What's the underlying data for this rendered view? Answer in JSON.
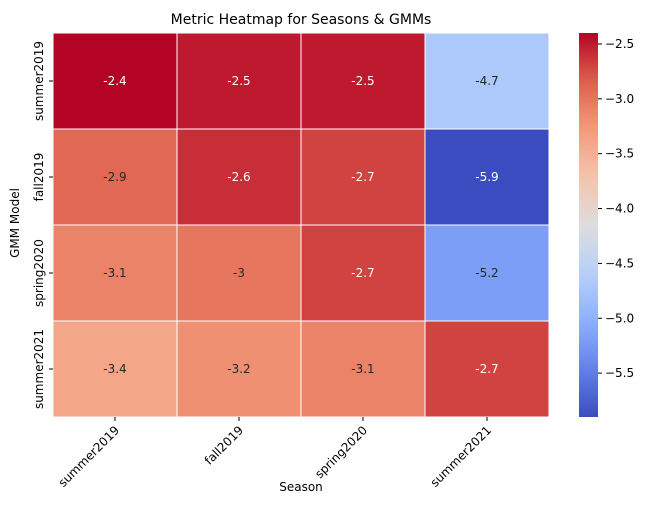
{
  "chart_data": {
    "type": "heatmap",
    "title": "Metric Heatmap for Seasons & GMMs",
    "xlabel": "Season",
    "ylabel": "GMM Model",
    "x_categories": [
      "summer2019",
      "fall2019",
      "spring2020",
      "summer2021"
    ],
    "y_categories": [
      "summer2019",
      "fall2019",
      "spring2020",
      "summer2021"
    ],
    "values": [
      [
        -2.4,
        -2.5,
        -2.5,
        -4.7
      ],
      [
        -2.9,
        -2.6,
        -2.7,
        -5.9
      ],
      [
        -3.1,
        -3.0,
        -2.7,
        -5.2
      ],
      [
        -3.4,
        -3.2,
        -3.1,
        -2.7
      ]
    ],
    "cell_labels": [
      [
        "-2.4",
        "-2.5",
        "-2.5",
        "-4.7"
      ],
      [
        "-2.9",
        "-2.6",
        "-2.7",
        "-5.9"
      ],
      [
        "-3.1",
        "-3",
        "-2.7",
        "-5.2"
      ],
      [
        "-3.4",
        "-3.2",
        "-3.1",
        "-2.7"
      ]
    ],
    "colormap": "coolwarm",
    "color_range": [
      -5.9,
      -2.4
    ],
    "colorbar_ticks": [
      -2.5,
      -3.0,
      -3.5,
      -4.0,
      -4.5,
      -5.0,
      -5.5
    ],
    "colorbar_tick_labels": [
      "−2.5",
      "−3.0",
      "−3.5",
      "−4.0",
      "−4.5",
      "−5.0",
      "−5.5"
    ],
    "colors": {
      "low": "#3b4cc0",
      "mid": "#dddddd",
      "high": "#b40426",
      "cell_border": "#ffffff"
    }
  }
}
